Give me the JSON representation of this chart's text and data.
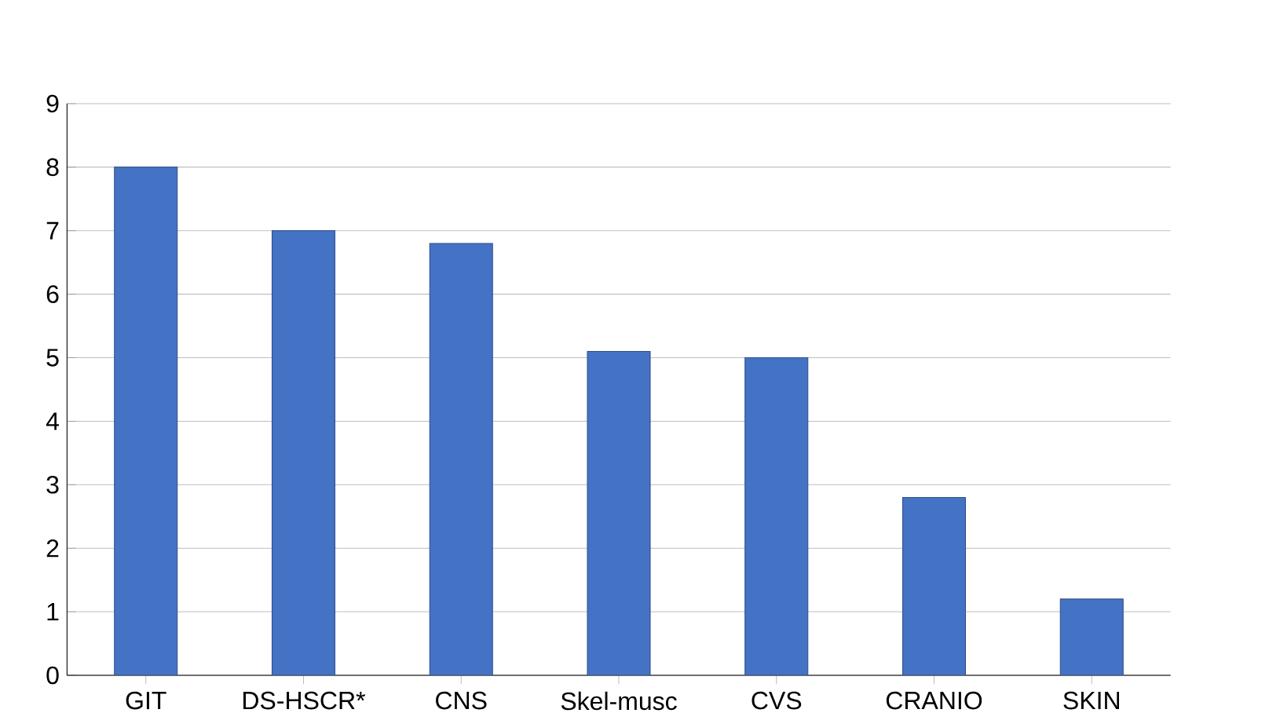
{
  "chart_data": {
    "type": "bar",
    "categories": [
      "GIT",
      "DS-HSCR*",
      "CNS",
      "Skel-musc",
      "CVS",
      "CRANIO",
      "SKIN"
    ],
    "values": [
      8,
      7,
      6.8,
      5.1,
      5,
      2.8,
      1.2
    ],
    "color": "#4472c4",
    "ylim": [
      0,
      9
    ],
    "yticks": [
      0,
      1,
      2,
      3,
      4,
      5,
      6,
      7,
      8,
      9
    ],
    "grid": "y"
  }
}
